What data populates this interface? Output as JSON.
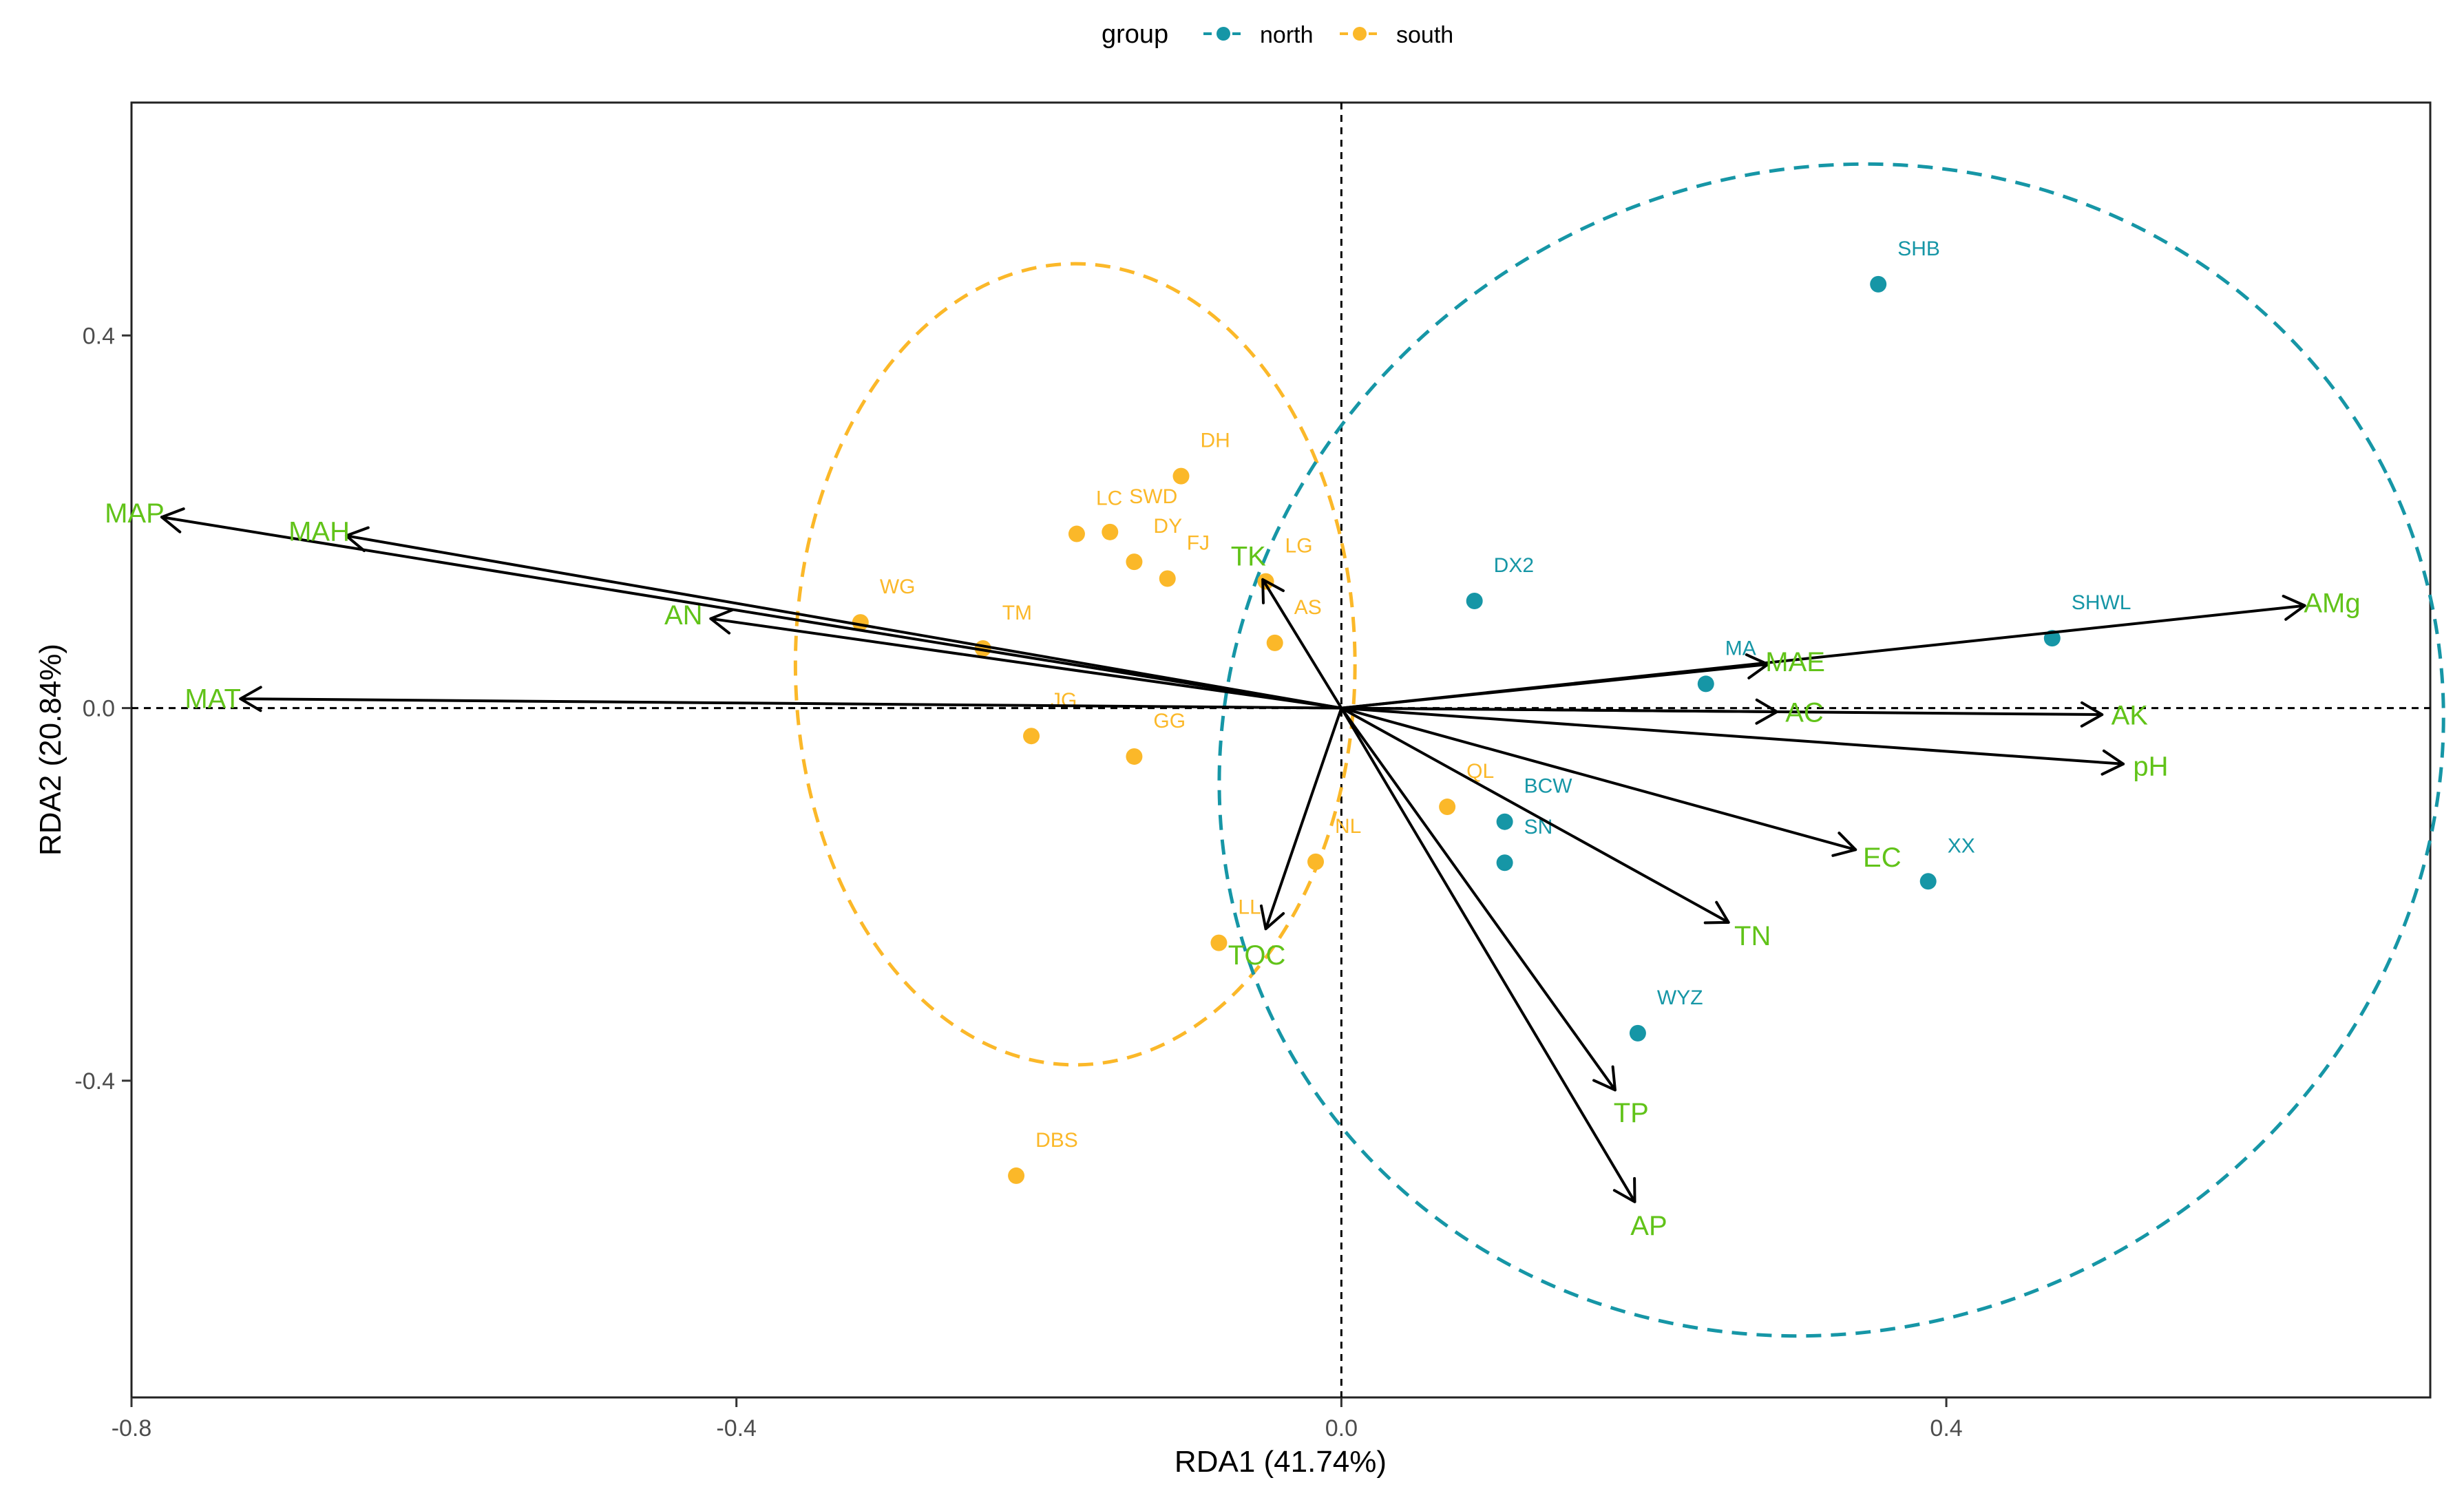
{
  "chart_data": {
    "type": "scatter",
    "title": "",
    "xlabel": "RDA1 (41.74%)",
    "ylabel": "RDA2 (20.84%)",
    "xlim": [
      -0.8,
      0.72
    ],
    "ylim": [
      -0.74,
      0.65
    ],
    "xticks": [
      -0.8,
      -0.4,
      0.0,
      0.4
    ],
    "yticks": [
      -0.4,
      0.0,
      0.4
    ],
    "xtick_labels": [
      "-0.8",
      "-0.4",
      "0.0",
      "0.4"
    ],
    "ytick_labels": [
      "-0.4",
      "0.0",
      "0.4"
    ],
    "grid": false,
    "reference_lines": {
      "x": 0,
      "y": 0,
      "style": "dashed"
    },
    "legend": {
      "title": "group",
      "placement": "top",
      "entries": [
        {
          "name": "north",
          "color": "#1696a6"
        },
        {
          "name": "south",
          "color": "#fbb829"
        }
      ]
    },
    "colors": {
      "north": "#1696a6",
      "south": "#fbb829",
      "vector": "#000000",
      "vector_label": "#61c319"
    },
    "points": [
      {
        "label": "SHB",
        "group": "north",
        "x": 0.355,
        "y": 0.455
      },
      {
        "label": "DX2",
        "group": "north",
        "x": 0.088,
        "y": 0.115
      },
      {
        "label": "SHWL",
        "group": "north",
        "x": 0.47,
        "y": 0.075
      },
      {
        "label": "MA",
        "group": "north",
        "x": 0.241,
        "y": 0.026
      },
      {
        "label": "BCW",
        "group": "north",
        "x": 0.108,
        "y": -0.122
      },
      {
        "label": "SN",
        "group": "north",
        "x": 0.108,
        "y": -0.166
      },
      {
        "label": "XX",
        "group": "north",
        "x": 0.388,
        "y": -0.186
      },
      {
        "label": "WYZ",
        "group": "north",
        "x": 0.196,
        "y": -0.349
      },
      {
        "label": "DH",
        "group": "south",
        "x": -0.106,
        "y": 0.249
      },
      {
        "label": "LC",
        "group": "south",
        "x": -0.175,
        "y": 0.187
      },
      {
        "label": "SWD",
        "group": "south",
        "x": -0.153,
        "y": 0.189
      },
      {
        "label": "DY",
        "group": "south",
        "x": -0.137,
        "y": 0.157
      },
      {
        "label": "FJ",
        "group": "south",
        "x": -0.115,
        "y": 0.139
      },
      {
        "label": "LG",
        "group": "south",
        "x": -0.05,
        "y": 0.136
      },
      {
        "label": "AS",
        "group": "south",
        "x": -0.044,
        "y": 0.07
      },
      {
        "label": "WG",
        "group": "south",
        "x": -0.318,
        "y": 0.092
      },
      {
        "label": "TM",
        "group": "south",
        "x": -0.237,
        "y": 0.064
      },
      {
        "label": "JG",
        "group": "south",
        "x": -0.205,
        "y": -0.03
      },
      {
        "label": "GG",
        "group": "south",
        "x": -0.137,
        "y": -0.052
      },
      {
        "label": "QL",
        "group": "south",
        "x": 0.07,
        "y": -0.106
      },
      {
        "label": "NL",
        "group": "south",
        "x": -0.017,
        "y": -0.165
      },
      {
        "label": "LL",
        "group": "south",
        "x": -0.081,
        "y": -0.252
      },
      {
        "label": "DBS",
        "group": "south",
        "x": -0.215,
        "y": -0.502
      }
    ],
    "vectors": [
      {
        "label": "MAP",
        "x": -0.78,
        "y": 0.205
      },
      {
        "label": "MAH",
        "x": -0.658,
        "y": 0.185
      },
      {
        "label": "AN",
        "x": -0.417,
        "y": 0.096
      },
      {
        "label": "MAT",
        "x": -0.728,
        "y": 0.01
      },
      {
        "label": "TK",
        "x": -0.052,
        "y": 0.138
      },
      {
        "label": "TOC",
        "x": -0.05,
        "y": -0.237
      },
      {
        "label": "AMg",
        "x": 0.637,
        "y": 0.11
      },
      {
        "label": "MAE",
        "x": 0.282,
        "y": 0.047
      },
      {
        "label": "AC",
        "x": 0.288,
        "y": -0.004
      },
      {
        "label": "AK",
        "x": 0.503,
        "y": -0.007
      },
      {
        "label": "pH",
        "x": 0.517,
        "y": -0.06
      },
      {
        "label": "EC",
        "x": 0.34,
        "y": -0.152
      },
      {
        "label": "TN",
        "x": 0.256,
        "y": -0.23
      },
      {
        "label": "TP",
        "x": 0.181,
        "y": -0.41
      },
      {
        "label": "AP",
        "x": 0.194,
        "y": -0.53
      }
    ],
    "ellipses": [
      {
        "group": "south",
        "cx": -0.176,
        "cy": 0.047,
        "rx": 0.185,
        "ry": 0.43,
        "rotation_deg": 0
      },
      {
        "group": "north",
        "cx": 0.324,
        "cy": -0.045,
        "rx": 0.41,
        "ry": 0.62,
        "rotation_deg": -26
      }
    ]
  }
}
